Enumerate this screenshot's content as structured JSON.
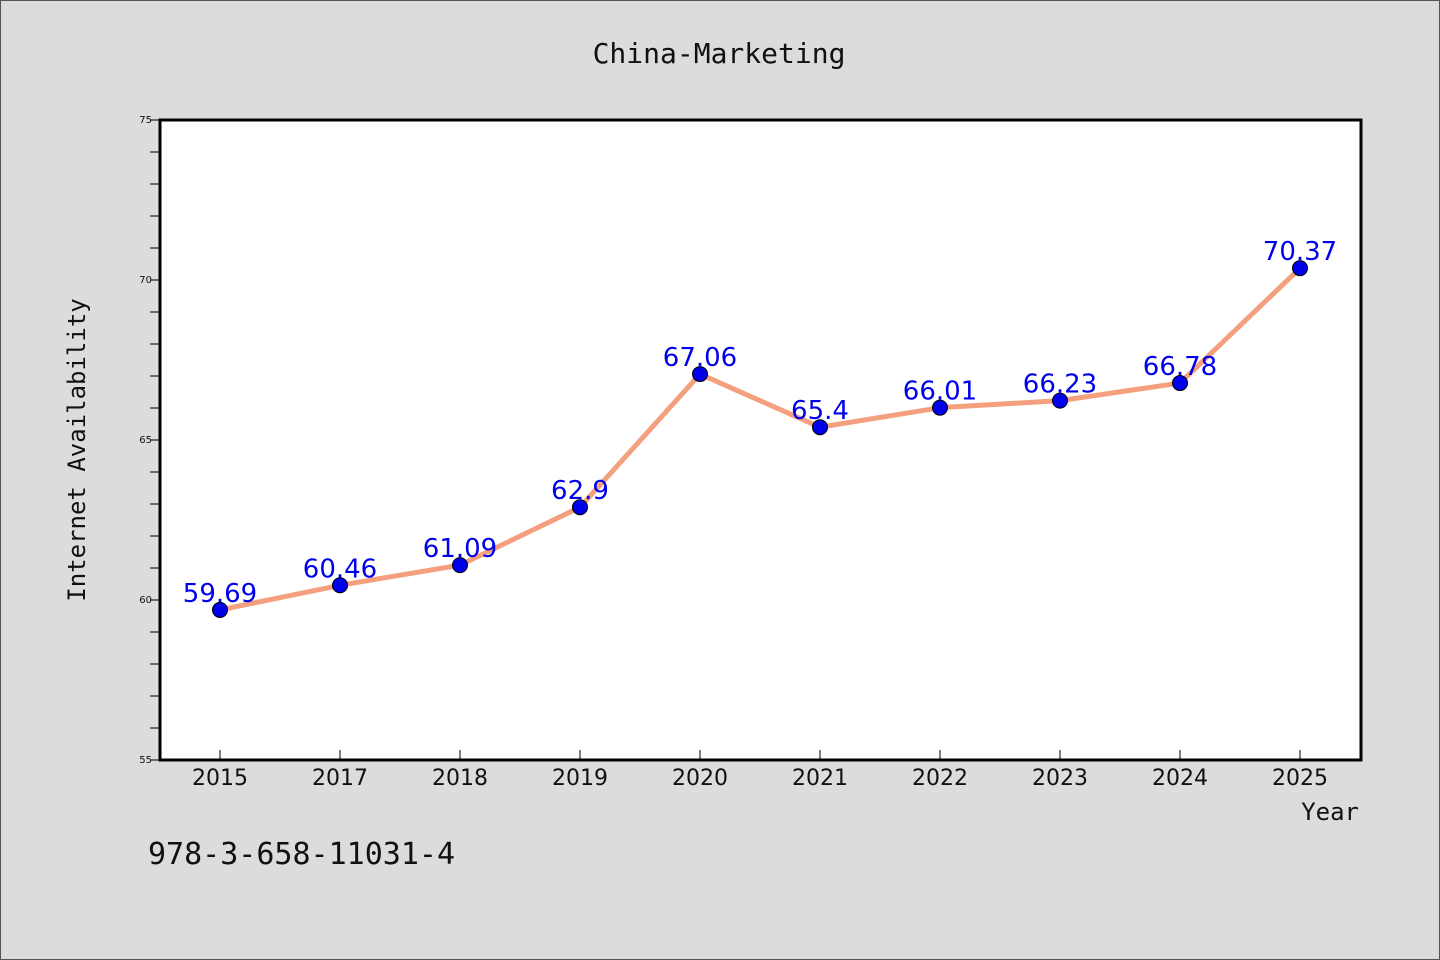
{
  "chart_data": {
    "type": "line",
    "title": "China-Marketing",
    "xlabel": "Year",
    "ylabel": "Internet Availability",
    "categories": [
      "2015",
      "2017",
      "2018",
      "2019",
      "2020",
      "2021",
      "2022",
      "2023",
      "2024",
      "2025"
    ],
    "values": [
      59.69,
      60.46,
      61.09,
      62.9,
      67.06,
      65.4,
      66.01,
      66.23,
      66.78,
      70.37
    ],
    "data_labels": [
      "59.69",
      "60.46",
      "61.09",
      "62.9",
      "67.06",
      "65.4",
      "66.01",
      "66.23",
      "66.78",
      "70.37"
    ],
    "ylim": [
      55,
      75
    ],
    "y_ticks": [
      55,
      60,
      65,
      70,
      75
    ],
    "grid": false,
    "colors": {
      "line": "#f4a07e",
      "marker": "#0000ee",
      "label": "#0000ee",
      "background": "#dcdcdc",
      "plot_background": "#ffffff"
    }
  },
  "footer": {
    "isbn": "978-3-658-11031-4"
  }
}
